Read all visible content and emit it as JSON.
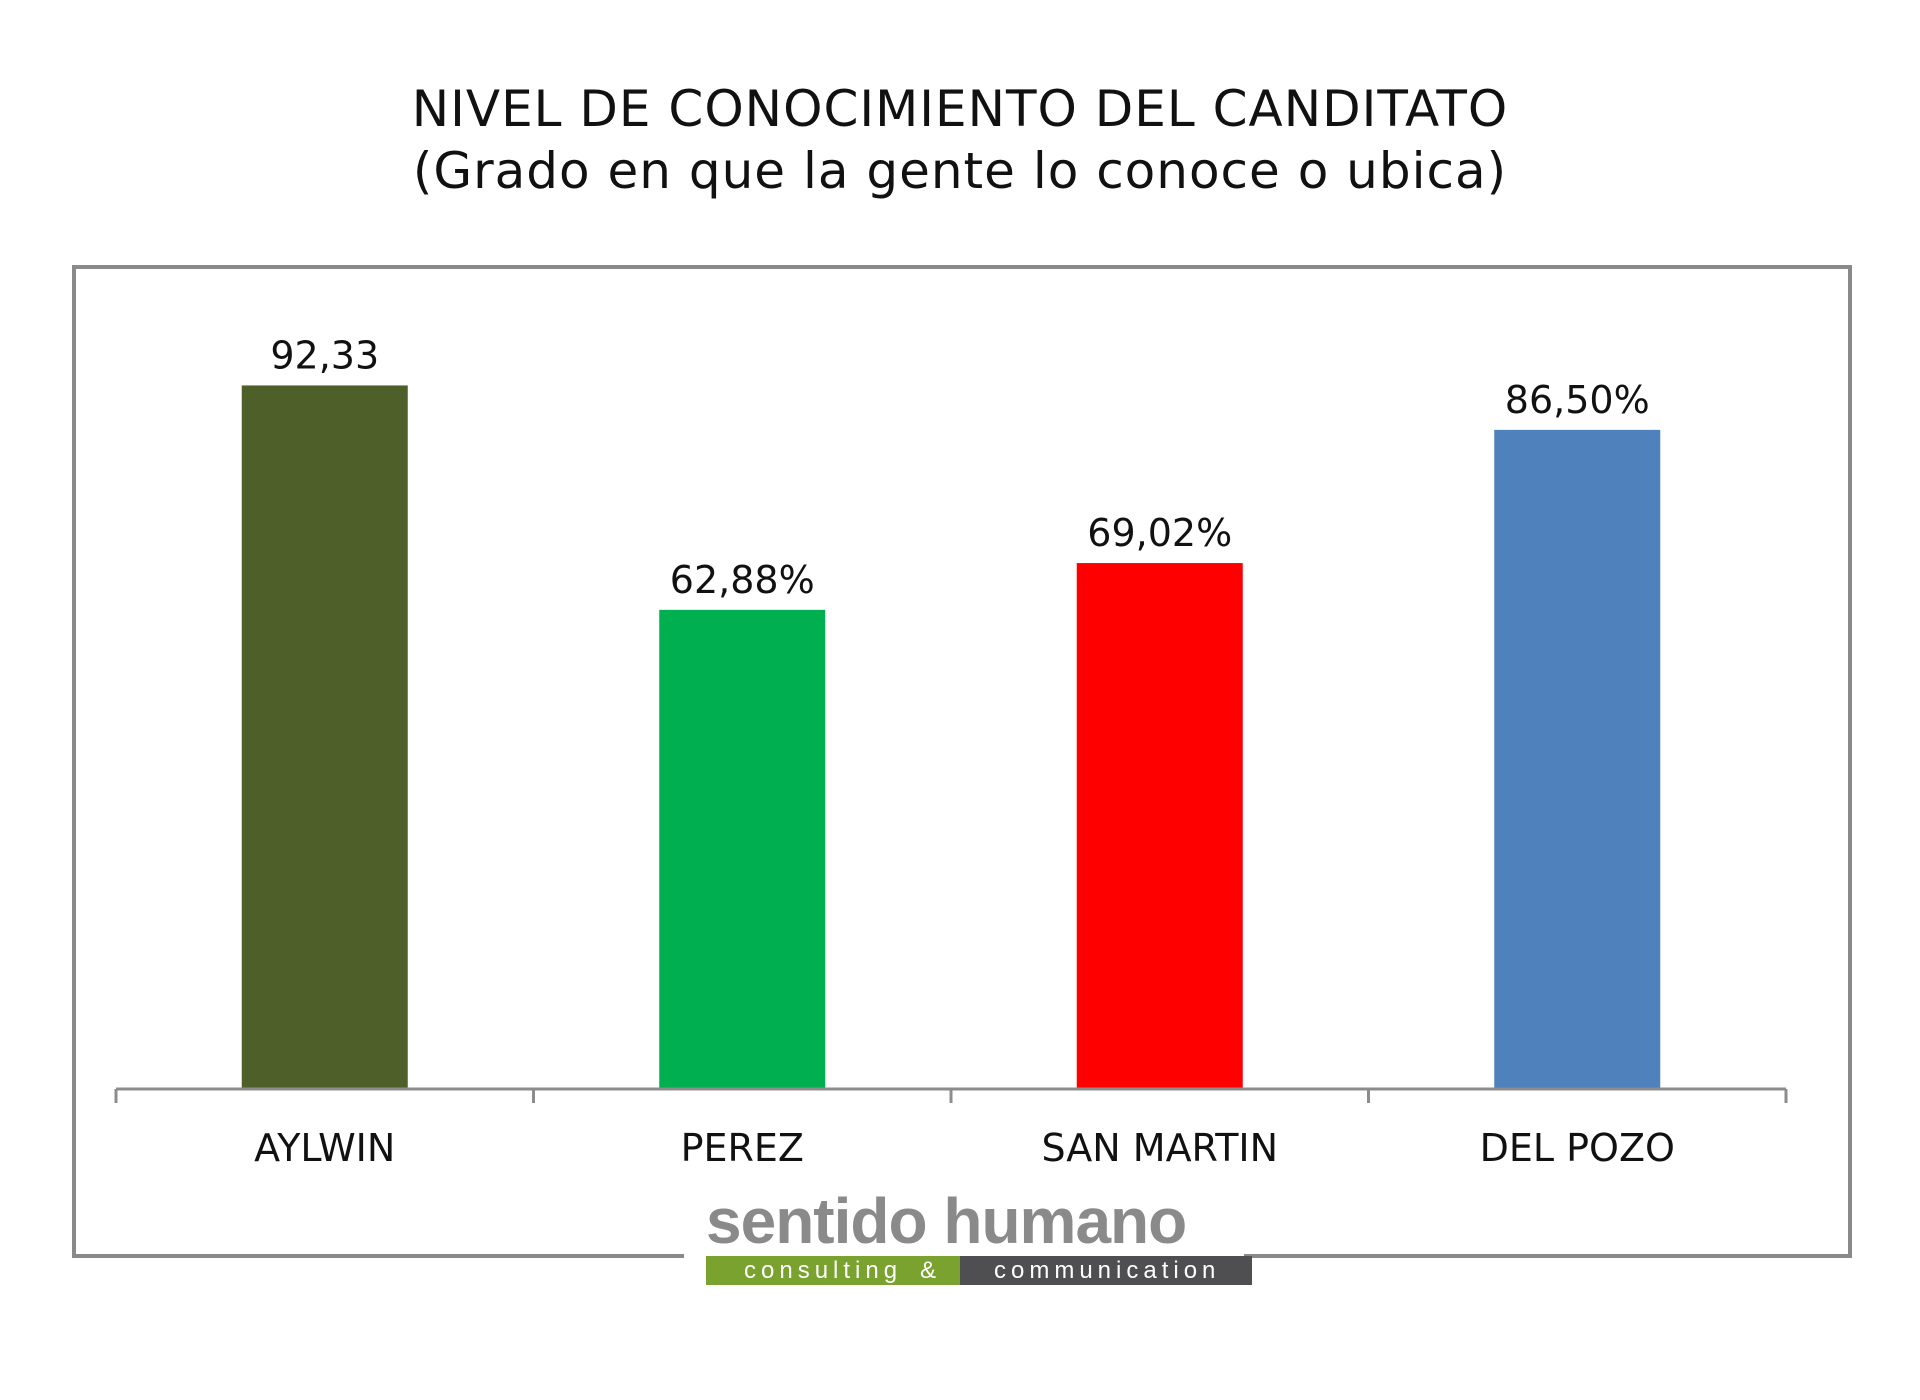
{
  "title": {
    "line1": "NIVEL DE CONOCIMIENTO DEL CANDITATO",
    "line2": "(Grado en que la gente lo conoce o ubica)"
  },
  "chart_data": {
    "type": "bar",
    "categories": [
      "AYLWIN",
      "PEREZ",
      "SAN MARTIN",
      "DEL POZO"
    ],
    "values": [
      92.33,
      62.88,
      69.02,
      86.5
    ],
    "data_labels": [
      "92,33",
      "62,88%",
      "69,02%",
      "86,50%"
    ],
    "colors": [
      "#4f5f2a",
      "#00af50",
      "#ff0000",
      "#4f81bd"
    ],
    "ylim": [
      0,
      100
    ],
    "grid": false,
    "legend": "none"
  },
  "logo": {
    "word": "sentido humano",
    "sub_left": "consulting",
    "amp": "&",
    "sub_right": "communication",
    "colors": {
      "word": "#8a8a8a",
      "bar_left": "#7aa22e",
      "bar_right": "#4f4f51"
    }
  }
}
